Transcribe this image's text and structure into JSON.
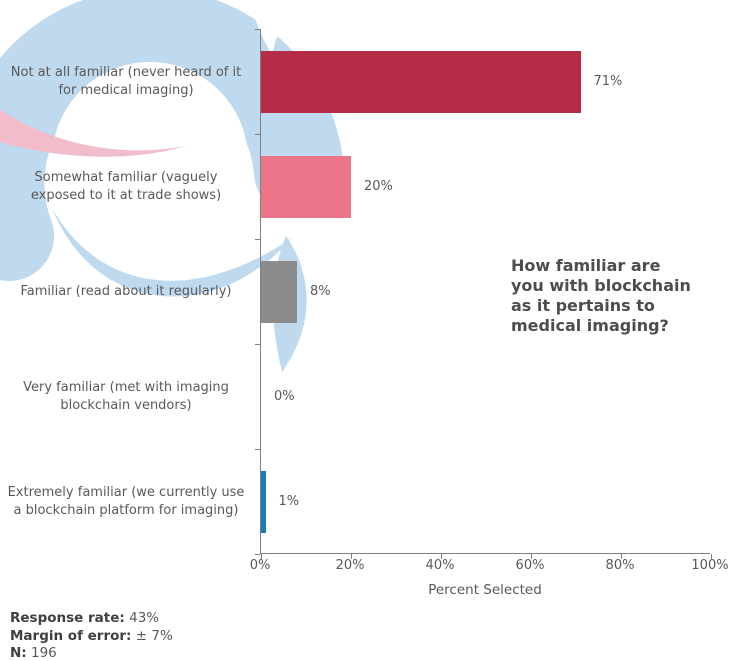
{
  "chart_title": {
    "text": "How familiar are you with blockchain as it pertains to medical imaging?",
    "lines": [
      "How familiar are",
      "you with blockchain",
      "as it pertains to",
      "medical imaging?"
    ]
  },
  "chart_data": {
    "type": "bar",
    "orientation": "horizontal",
    "title": "How familiar are you with blockchain as it pertains to medical imaging?",
    "categories": [
      "Not at all familiar (never heard of it for medical imaging)",
      "Somewhat familiar (vaguely exposed to it at trade shows)",
      "Familiar (read about it regularly)",
      "Very familiar (met with imaging blockchain vendors)",
      "Extremely familiar (we currently use a blockchain platform for imaging)"
    ],
    "category_lines": [
      [
        "Not at all familiar (never heard of it",
        "for medical imaging)"
      ],
      [
        "Somewhat familiar (vaguely",
        "exposed to it at trade shows)"
      ],
      [
        "Familiar (read about it regularly)"
      ],
      [
        "Very familiar (met with imaging",
        "blockchain vendors)"
      ],
      [
        "Extremely familiar (we currently use",
        "a blockchain platform for imaging)"
      ]
    ],
    "values": [
      71,
      20,
      8,
      0,
      1
    ],
    "value_labels": [
      "71%",
      "20%",
      "8%",
      "0%",
      "1%"
    ],
    "bar_colors": [
      "#B42C46",
      "#EC7589",
      "#8C8C8C",
      "#8C8C8C",
      "#1A7DB5"
    ],
    "xlabel": "Percent Selected",
    "xlim": [
      0,
      100
    ],
    "x_tick_values": [
      0,
      20,
      40,
      60,
      80,
      100
    ],
    "x_tick_labels": [
      "0%",
      "20%",
      "40%",
      "60%",
      "80%",
      "100%"
    ],
    "grid": false,
    "legend": false
  },
  "footer": {
    "stats": [
      {
        "label": "Response rate:",
        "value": "43%"
      },
      {
        "label": "Margin of error:",
        "value": "± 7%"
      },
      {
        "label": "N:",
        "value": "196"
      }
    ]
  },
  "logo": {
    "name": "swirl-logo-watermark",
    "blue": "#BFD9EF",
    "pink": "#F2BDCB"
  },
  "colors": {
    "axis": "#7F7F7F",
    "label_text": "#595959",
    "title_text": "#4D4D4D",
    "background": "#FFFFFF"
  }
}
